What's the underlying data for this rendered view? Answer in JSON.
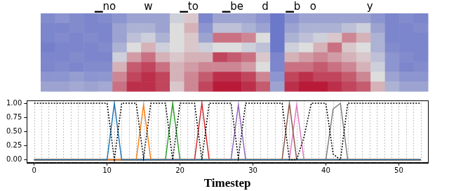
{
  "chart_data": {
    "type": "line",
    "xlabel": "Timestep",
    "x": [
      0,
      1,
      2,
      3,
      4,
      5,
      6,
      7,
      8,
      9,
      10,
      11,
      12,
      13,
      14,
      15,
      16,
      17,
      18,
      19,
      20,
      21,
      22,
      23,
      24,
      25,
      26,
      27,
      28,
      29,
      30,
      31,
      32,
      33,
      34,
      35,
      36,
      37,
      38,
      39,
      40,
      41,
      42,
      43,
      44,
      45,
      46,
      47,
      48,
      49,
      50,
      51,
      52,
      53
    ],
    "xlim": [
      -1,
      54
    ],
    "xticks": [
      0,
      10,
      20,
      30,
      40,
      50
    ],
    "ylim": [
      -0.05,
      1.05
    ],
    "yticks": [
      {
        "value": 0,
        "label": "0.00"
      },
      0.25,
      {
        "value": 0.5,
        "label": "0.50"
      },
      0.75,
      {
        "value": 1,
        "label": "1.00"
      }
    ],
    "grid": true,
    "series": [
      {
        "color": "#000000",
        "line_style": "dotted",
        "values": [
          1,
          1,
          1,
          1,
          1,
          1,
          1,
          1,
          1,
          1,
          1,
          0,
          1,
          1,
          1,
          0.03,
          1,
          1,
          1,
          0,
          1,
          1,
          1,
          0,
          1,
          1,
          1,
          1,
          0.03,
          1,
          1,
          1,
          1,
          1,
          1,
          0,
          0,
          0.4,
          1,
          1,
          1,
          0.1,
          0,
          1,
          1,
          1,
          1,
          1,
          1,
          1,
          1,
          1,
          1,
          1
        ]
      },
      {
        "color": "#1f77b4",
        "line_style": "solid",
        "values": [
          0,
          0,
          0,
          0,
          0,
          0,
          0,
          0,
          0,
          0,
          0,
          1,
          0,
          0,
          0,
          0,
          0,
          0,
          0,
          0,
          0,
          0,
          0,
          0,
          0,
          0,
          0,
          0,
          0,
          0,
          0,
          0,
          0,
          0,
          0,
          0,
          0,
          0,
          0,
          0,
          0,
          0,
          0,
          0,
          0,
          0,
          0,
          0,
          0,
          0,
          0,
          0,
          0,
          0
        ]
      },
      {
        "color": "#ff7f0e",
        "line_style": "solid",
        "values": [
          0,
          0,
          0,
          0,
          0,
          0,
          0,
          0,
          0,
          0,
          0,
          0,
          0,
          0,
          0,
          0.97,
          0,
          0,
          0,
          0,
          0,
          0,
          0,
          0,
          0,
          0,
          0,
          0,
          0,
          0,
          0,
          0,
          0,
          0,
          0,
          0,
          0,
          0,
          0,
          0,
          0,
          0,
          0,
          0,
          0,
          0,
          0,
          0,
          0,
          0,
          0,
          0,
          0,
          0
        ]
      },
      {
        "color": "#2ca02c",
        "line_style": "solid",
        "values": [
          0,
          0,
          0,
          0,
          0,
          0,
          0,
          0,
          0,
          0,
          0,
          0,
          0,
          0,
          0,
          0,
          0,
          0,
          0,
          1,
          0,
          0,
          0,
          0,
          0,
          0,
          0,
          0,
          0,
          0,
          0,
          0,
          0,
          0,
          0,
          0,
          0,
          0,
          0,
          0,
          0,
          0,
          0,
          0,
          0,
          0,
          0,
          0,
          0,
          0,
          0,
          0,
          0,
          0
        ]
      },
      {
        "color": "#d62728",
        "line_style": "solid",
        "values": [
          0,
          0,
          0,
          0,
          0,
          0,
          0,
          0,
          0,
          0,
          0,
          0,
          0,
          0,
          0,
          0,
          0,
          0,
          0,
          0,
          0,
          0,
          0,
          1,
          0,
          0,
          0,
          0,
          0,
          0,
          0,
          0,
          0,
          0,
          0,
          0,
          0,
          0,
          0,
          0,
          0,
          0,
          0,
          0,
          0,
          0,
          0,
          0,
          0,
          0,
          0,
          0,
          0,
          0
        ]
      },
      {
        "color": "#9467bd",
        "line_style": "solid",
        "values": [
          0,
          0,
          0,
          0,
          0,
          0,
          0,
          0,
          0,
          0,
          0,
          0,
          0,
          0,
          0,
          0,
          0,
          0,
          0,
          0,
          0,
          0,
          0,
          0,
          0,
          0,
          0,
          0,
          0.97,
          0,
          0,
          0,
          0,
          0,
          0,
          0,
          0,
          0,
          0,
          0,
          0,
          0,
          0,
          0,
          0,
          0,
          0,
          0,
          0,
          0,
          0,
          0,
          0,
          0
        ]
      },
      {
        "color": "#8c564b",
        "line_style": "solid",
        "values": [
          0,
          0,
          0,
          0,
          0,
          0,
          0,
          0,
          0,
          0,
          0,
          0,
          0,
          0,
          0,
          0,
          0,
          0,
          0,
          0,
          0,
          0,
          0,
          0,
          0,
          0,
          0,
          0,
          0,
          0,
          0,
          0,
          0,
          0,
          0,
          1,
          0,
          0,
          0,
          0,
          0,
          0,
          0,
          0,
          0,
          0,
          0,
          0,
          0,
          0,
          0,
          0,
          0,
          0
        ]
      },
      {
        "color": "#e377c2",
        "line_style": "solid",
        "values": [
          0,
          0,
          0,
          0,
          0,
          0,
          0,
          0,
          0,
          0,
          0,
          0,
          0,
          0,
          0,
          0,
          0,
          0,
          0,
          0,
          0,
          0,
          0,
          0,
          0,
          0,
          0,
          0,
          0,
          0,
          0,
          0,
          0,
          0,
          0,
          0,
          0.97,
          0,
          0,
          0,
          0,
          0,
          0,
          0,
          0,
          0,
          0,
          0,
          0,
          0,
          0,
          0,
          0,
          0
        ]
      },
      {
        "color": "#7f7f7f",
        "line_style": "solid",
        "values": [
          0,
          0,
          0,
          0,
          0,
          0,
          0,
          0,
          0,
          0,
          0,
          0,
          0,
          0,
          0,
          0,
          0,
          0,
          0,
          0,
          0,
          0,
          0,
          0,
          0,
          0,
          0,
          0,
          0,
          0,
          0,
          0,
          0,
          0,
          0,
          0,
          0,
          0,
          0,
          0,
          0,
          0.9,
          1,
          0,
          0,
          0,
          0,
          0,
          0,
          0,
          0,
          0,
          0,
          0
        ]
      }
    ],
    "tokens": [
      {
        "text": "▁no",
        "x": 9
      },
      {
        "text": "w",
        "x": 15
      },
      {
        "text": "▁to",
        "x": 20.7
      },
      {
        "text": "▁be",
        "x": 26.8
      },
      {
        "text": "d",
        "x": 31.3
      },
      {
        "text": "▁b",
        "x": 35.2
      },
      {
        "text": "o",
        "x": 38
      },
      {
        "text": "y",
        "x": 45.9
      }
    ],
    "spectrogram": {
      "xlim": [
        0,
        54
      ],
      "cells": [
        [
          0.22,
          0.25,
          0.22,
          0.2,
          0.22,
          0.25,
          0.3,
          0.3,
          0.3,
          0.45,
          0.55,
          0.2,
          0.3,
          0.3,
          0.3,
          0.25,
          0.15,
          0.25,
          0.3,
          0.3,
          0.3,
          0.3,
          0.3,
          0.25,
          0.2,
          0.22,
          0.2
        ],
        [
          0.2,
          0.2,
          0.22,
          0.2,
          0.2,
          0.3,
          0.35,
          0.35,
          0.3,
          0.5,
          0.6,
          0.25,
          0.4,
          0.4,
          0.35,
          0.3,
          0.15,
          0.3,
          0.35,
          0.35,
          0.35,
          0.4,
          0.45,
          0.3,
          0.2,
          0.2,
          0.22
        ],
        [
          0.2,
          0.22,
          0.2,
          0.22,
          0.2,
          0.3,
          0.4,
          0.45,
          0.35,
          0.5,
          0.55,
          0.3,
          0.75,
          0.75,
          0.7,
          0.5,
          0.15,
          0.35,
          0.4,
          0.45,
          0.55,
          0.7,
          0.6,
          0.35,
          0.2,
          0.2,
          0.2
        ],
        [
          0.18,
          0.2,
          0.2,
          0.2,
          0.22,
          0.35,
          0.5,
          0.6,
          0.45,
          0.5,
          0.55,
          0.45,
          0.5,
          0.5,
          0.45,
          0.4,
          0.15,
          0.45,
          0.5,
          0.6,
          0.75,
          0.55,
          0.5,
          0.35,
          0.22,
          0.2,
          0.2
        ],
        [
          0.2,
          0.2,
          0.22,
          0.2,
          0.2,
          0.45,
          0.65,
          0.75,
          0.6,
          0.55,
          0.6,
          0.6,
          0.85,
          0.8,
          0.75,
          0.55,
          0.2,
          0.6,
          0.65,
          0.7,
          0.65,
          0.6,
          0.55,
          0.4,
          0.25,
          0.22,
          0.2
        ],
        [
          0.2,
          0.22,
          0.2,
          0.22,
          0.22,
          0.6,
          0.8,
          0.85,
          0.75,
          0.6,
          0.65,
          0.7,
          0.7,
          0.7,
          0.65,
          0.5,
          0.2,
          0.75,
          0.75,
          0.8,
          0.75,
          0.7,
          0.6,
          0.45,
          0.25,
          0.2,
          0.22
        ],
        [
          0.25,
          0.25,
          0.28,
          0.25,
          0.26,
          0.7,
          0.85,
          0.9,
          0.85,
          0.6,
          0.7,
          0.8,
          0.9,
          0.9,
          0.85,
          0.7,
          0.25,
          0.85,
          0.9,
          0.85,
          0.85,
          0.8,
          0.7,
          0.5,
          0.3,
          0.25,
          0.25
        ],
        [
          0.3,
          0.3,
          0.32,
          0.3,
          0.32,
          0.75,
          0.9,
          0.9,
          0.85,
          0.55,
          0.7,
          0.85,
          0.95,
          0.95,
          0.9,
          0.8,
          0.3,
          0.9,
          0.95,
          0.95,
          0.9,
          0.85,
          0.8,
          0.6,
          0.35,
          0.3,
          0.3
        ]
      ]
    }
  }
}
